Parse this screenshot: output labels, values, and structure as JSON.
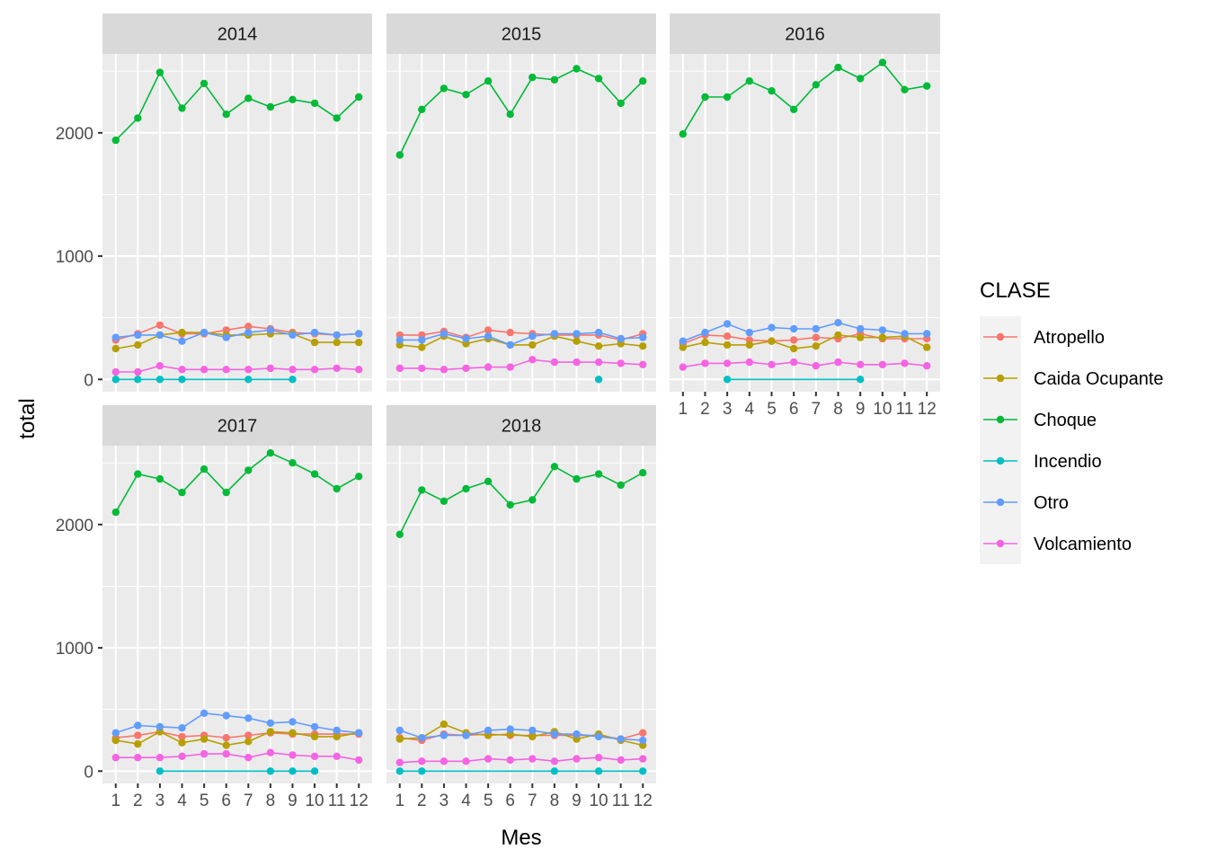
{
  "chart_data": {
    "type": "line",
    "facet_by": "year",
    "facets": [
      "2014",
      "2015",
      "2016",
      "2017",
      "2018"
    ],
    "x": [
      1,
      2,
      3,
      4,
      5,
      6,
      7,
      8,
      9,
      10,
      11,
      12
    ],
    "xlabel": "Mes",
    "ylabel": "total",
    "ylim": [
      -100,
      2640
    ],
    "yticks": [
      0,
      1000,
      2000
    ],
    "grid": true,
    "legend": {
      "title": "CLASE",
      "position": "right",
      "entries": [
        "Atropello",
        "Caida Ocupante",
        "Choque",
        "Incendio",
        "Otro",
        "Volcamiento"
      ]
    },
    "series_colors": {
      "Atropello": "#F8766D",
      "Caida Ocupante": "#B79F00",
      "Choque": "#00BA38",
      "Incendio": "#00BFC4",
      "Otro": "#619CFF",
      "Volcamiento": "#F564E3"
    },
    "panels": [
      {
        "facet": "2014",
        "series": [
          {
            "name": "Atropello",
            "values": [
              320,
              370,
              440,
              370,
              370,
              400,
              430,
              410,
              380,
              370,
              360,
              370
            ]
          },
          {
            "name": "Caida Ocupante",
            "values": [
              250,
              280,
              360,
              380,
              380,
              360,
              360,
              370,
              370,
              300,
              300,
              300
            ]
          },
          {
            "name": "Choque",
            "values": [
              1940,
              2120,
              2490,
              2200,
              2400,
              2150,
              2280,
              2210,
              2270,
              2240,
              2120,
              2290
            ]
          },
          {
            "name": "Otro",
            "values": [
              340,
              360,
              360,
              310,
              380,
              340,
              380,
              400,
              360,
              380,
              360,
              370
            ]
          },
          {
            "name": "Volcamiento",
            "values": [
              60,
              60,
              110,
              80,
              80,
              80,
              80,
              90,
              80,
              80,
              90,
              80
            ]
          },
          {
            "name": "Incendio",
            "months": [
              1,
              2,
              3,
              4,
              7,
              9
            ],
            "values": [
              0,
              0,
              0,
              0,
              0,
              0
            ]
          }
        ]
      },
      {
        "facet": "2015",
        "series": [
          {
            "name": "Atropello",
            "values": [
              360,
              360,
              390,
              340,
              400,
              380,
              370,
              360,
              360,
              360,
              320,
              370
            ]
          },
          {
            "name": "Caida Ocupante",
            "values": [
              280,
              260,
              350,
              290,
              330,
              280,
              280,
              350,
              310,
              270,
              290,
              270
            ]
          },
          {
            "name": "Choque",
            "values": [
              1820,
              2190,
              2360,
              2310,
              2420,
              2150,
              2450,
              2430,
              2520,
              2440,
              2240,
              2420
            ]
          },
          {
            "name": "Otro",
            "values": [
              320,
              320,
              370,
              330,
              350,
              280,
              350,
              370,
              370,
              380,
              330,
              340
            ]
          },
          {
            "name": "Volcamiento",
            "values": [
              90,
              90,
              80,
              90,
              100,
              100,
              160,
              140,
              140,
              140,
              130,
              120
            ]
          },
          {
            "name": "Incendio",
            "months": [
              10
            ],
            "values": [
              0
            ]
          }
        ]
      },
      {
        "facet": "2016",
        "series": [
          {
            "name": "Atropello",
            "values": [
              290,
              360,
              350,
              320,
              310,
              320,
              340,
              330,
              370,
              330,
              330,
              330
            ]
          },
          {
            "name": "Caida Ocupante",
            "values": [
              260,
              300,
              280,
              280,
              310,
              250,
              270,
              360,
              340,
              340,
              350,
              260
            ]
          },
          {
            "name": "Choque",
            "values": [
              1990,
              2290,
              2290,
              2420,
              2340,
              2190,
              2390,
              2530,
              2440,
              2570,
              2350,
              2380
            ]
          },
          {
            "name": "Otro",
            "values": [
              310,
              380,
              450,
              380,
              420,
              410,
              410,
              460,
              410,
              400,
              370,
              370
            ]
          },
          {
            "name": "Volcamiento",
            "values": [
              100,
              130,
              130,
              140,
              120,
              140,
              110,
              140,
              120,
              120,
              130,
              110
            ]
          },
          {
            "name": "Incendio",
            "months": [
              3,
              9
            ],
            "values": [
              0,
              0
            ]
          }
        ]
      },
      {
        "facet": "2017",
        "series": [
          {
            "name": "Atropello",
            "values": [
              270,
              290,
              320,
              280,
              290,
              270,
              290,
              310,
              300,
              300,
              300,
              300
            ]
          },
          {
            "name": "Caida Ocupante",
            "values": [
              250,
              220,
              320,
              230,
              260,
              210,
              240,
              320,
              310,
              280,
              280,
              310
            ]
          },
          {
            "name": "Choque",
            "values": [
              2100,
              2410,
              2370,
              2260,
              2450,
              2260,
              2440,
              2580,
              2500,
              2410,
              2290,
              2390
            ]
          },
          {
            "name": "Otro",
            "values": [
              310,
              370,
              360,
              350,
              470,
              450,
              430,
              390,
              400,
              360,
              330,
              310
            ]
          },
          {
            "name": "Volcamiento",
            "values": [
              110,
              110,
              110,
              120,
              140,
              140,
              110,
              150,
              130,
              120,
              120,
              90
            ]
          },
          {
            "name": "Incendio",
            "months": [
              3,
              8,
              9,
              10
            ],
            "values": [
              0,
              0,
              0,
              0
            ]
          }
        ]
      },
      {
        "facet": "2018",
        "series": [
          {
            "name": "Atropello",
            "values": [
              270,
              250,
              300,
              290,
              300,
              290,
              290,
              290,
              290,
              290,
              260,
              310
            ]
          },
          {
            "name": "Caida Ocupante",
            "values": [
              260,
              270,
              380,
              310,
              290,
              300,
              280,
              320,
              260,
              300,
              250,
              210
            ]
          },
          {
            "name": "Choque",
            "values": [
              1920,
              2280,
              2190,
              2290,
              2350,
              2160,
              2200,
              2470,
              2370,
              2410,
              2320,
              2420
            ]
          },
          {
            "name": "Otro",
            "values": [
              330,
              270,
              290,
              290,
              330,
              340,
              330,
              300,
              300,
              280,
              260,
              250
            ]
          },
          {
            "name": "Volcamiento",
            "values": [
              70,
              80,
              80,
              80,
              100,
              90,
              100,
              80,
              100,
              110,
              90,
              100
            ]
          },
          {
            "name": "Incendio",
            "months": [
              1,
              2,
              8,
              10,
              12
            ],
            "values": [
              0,
              0,
              0,
              0,
              0
            ]
          }
        ]
      }
    ]
  }
}
